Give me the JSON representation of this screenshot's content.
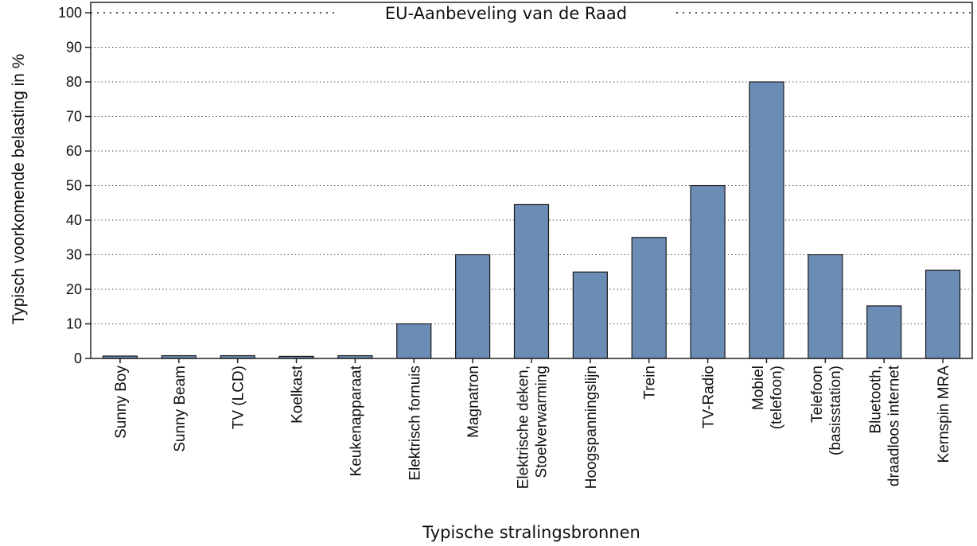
{
  "chart_data": {
    "type": "bar",
    "ylabel": "Typisch voorkomende belasting in %",
    "xlabel": "Typische stralingsbronnen",
    "ylim": [
      0,
      100
    ],
    "yticks": [
      0,
      10,
      20,
      30,
      40,
      50,
      60,
      70,
      80,
      90,
      100
    ],
    "grid": "horizontal-dotted",
    "reference_line": {
      "value": 100,
      "label": "EU-Aanbeveling van de Raad"
    },
    "bar_color": "#6b8cb5",
    "categories": [
      [
        "Sunny Boy"
      ],
      [
        "Sunny Beam"
      ],
      [
        "TV (LCD)"
      ],
      [
        "Koelkast"
      ],
      [
        "Keukenapparaat"
      ],
      [
        "Elektrisch fornuis"
      ],
      [
        "Magnatron"
      ],
      [
        "Elektrische deken,",
        "Stoelverwarming"
      ],
      [
        "Hoogspanningslijn"
      ],
      [
        "Trein"
      ],
      [
        "TV-Radio"
      ],
      [
        "Mobiel",
        "(telefoon)"
      ],
      [
        "Telefoon",
        "(basisstation)"
      ],
      [
        "Bluetooth,",
        "draadloos internet"
      ],
      [
        "Kernspin MRA"
      ]
    ],
    "values": [
      0.7,
      0.8,
      0.8,
      0.6,
      0.8,
      10,
      30,
      44.5,
      25,
      35,
      50,
      80,
      30,
      15.2,
      25.5
    ]
  }
}
